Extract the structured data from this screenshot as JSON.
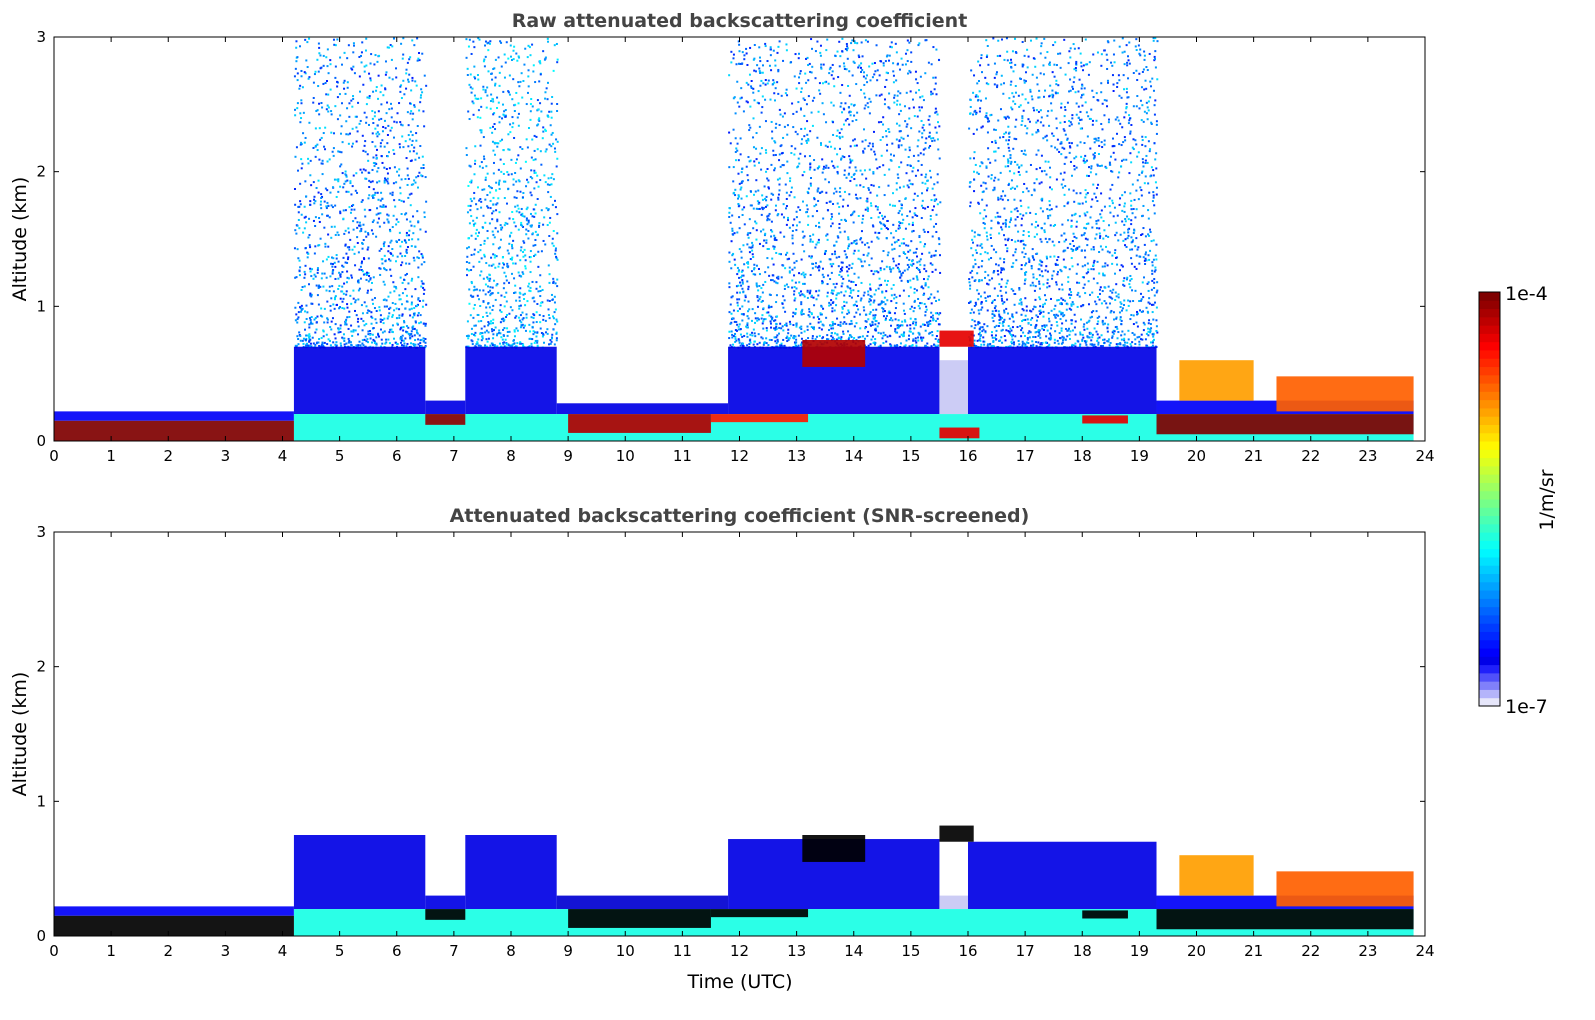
{
  "chart_data": {
    "type": "heatmap",
    "xlabel": "Time (UTC)",
    "x_ticks": [
      "0",
      "1",
      "2",
      "3",
      "4",
      "5",
      "6",
      "7",
      "8",
      "9",
      "10",
      "11",
      "12",
      "13",
      "14",
      "15",
      "16",
      "17",
      "18",
      "19",
      "20",
      "21",
      "22",
      "23",
      "24"
    ],
    "xlim": [
      0,
      24
    ],
    "colorbar": {
      "label": "1/m/sr",
      "min_label": "1e-7",
      "max_label": "1e-4",
      "scale": "log",
      "range": [
        1e-07,
        0.0001
      ]
    },
    "panels": [
      {
        "title": "Raw attenuated backscattering coefficient",
        "ylabel": "Altitude (km)",
        "y_ticks": [
          "0",
          "1",
          "2",
          "3"
        ],
        "ylim": [
          0,
          3
        ],
        "regions": [
          {
            "t": [
              4.2,
              6.5
            ],
            "alt": [
              0.7,
              3
            ],
            "level": 0.25,
            "sparse": true
          },
          {
            "t": [
              7.2,
              8.8
            ],
            "alt": [
              0.7,
              3
            ],
            "level": 0.28,
            "sparse": true
          },
          {
            "t": [
              11.8,
              15.5
            ],
            "alt": [
              0.7,
              3
            ],
            "level": 0.25,
            "sparse": true
          },
          {
            "t": [
              16.0,
              19.3
            ],
            "alt": [
              0.7,
              3
            ],
            "level": 0.25,
            "sparse": true
          },
          {
            "t": [
              0,
              4.2
            ],
            "alt": [
              0.15,
              0.22
            ],
            "level": 0.12
          },
          {
            "t": [
              4.2,
              6.5
            ],
            "alt": [
              0.2,
              0.7
            ],
            "level": 0.1
          },
          {
            "t": [
              6.5,
              7.2
            ],
            "alt": [
              0.2,
              0.3
            ],
            "level": 0.1
          },
          {
            "t": [
              7.2,
              8.8
            ],
            "alt": [
              0.2,
              0.7
            ],
            "level": 0.1
          },
          {
            "t": [
              8.8,
              11.8
            ],
            "alt": [
              0.2,
              0.28
            ],
            "level": 0.1
          },
          {
            "t": [
              11.8,
              15.5
            ],
            "alt": [
              0.2,
              0.7
            ],
            "level": 0.1
          },
          {
            "t": [
              15.5,
              16.0
            ],
            "alt": [
              0.2,
              0.6
            ],
            "level": 0.04
          },
          {
            "t": [
              16.0,
              19.3
            ],
            "alt": [
              0.2,
              0.7
            ],
            "level": 0.1
          },
          {
            "t": [
              19.3,
              23.8
            ],
            "alt": [
              0.2,
              0.3
            ],
            "level": 0.12
          },
          {
            "t": [
              4.2,
              23.8
            ],
            "alt": [
              0.0,
              0.2
            ],
            "level": 0.4
          },
          {
            "t": [
              0,
              4.2
            ],
            "alt": [
              0.0,
              0.15
            ],
            "level": 1.0
          },
          {
            "t": [
              6.5,
              7.2
            ],
            "alt": [
              0.12,
              0.2
            ],
            "level": 0.98
          },
          {
            "t": [
              9.0,
              11.5
            ],
            "alt": [
              0.06,
              0.2
            ],
            "level": 0.95
          },
          {
            "t": [
              11.5,
              13.2
            ],
            "alt": [
              0.14,
              0.2
            ],
            "level": 0.85
          },
          {
            "t": [
              15.5,
              16.2
            ],
            "alt": [
              0.02,
              0.1
            ],
            "level": 0.9
          },
          {
            "t": [
              18.0,
              18.8
            ],
            "alt": [
              0.13,
              0.19
            ],
            "level": 0.9
          },
          {
            "t": [
              19.3,
              23.8
            ],
            "alt": [
              0.05,
              0.2
            ],
            "level": 1.0
          },
          {
            "t": [
              13.1,
              14.2
            ],
            "alt": [
              0.55,
              0.75
            ],
            "level": 0.95
          },
          {
            "t": [
              15.5,
              16.1
            ],
            "alt": [
              0.7,
              0.82
            ],
            "level": 0.9
          },
          {
            "t": [
              19.7,
              21.0
            ],
            "alt": [
              0.3,
              0.6
            ],
            "level": 0.72
          },
          {
            "t": [
              21.4,
              23.8
            ],
            "alt": [
              0.22,
              0.48
            ],
            "level": 0.78
          }
        ]
      },
      {
        "title": "Attenuated backscattering coefficient (SNR-screened)",
        "ylabel": "Altitude (km)",
        "y_ticks": [
          "0",
          "1",
          "2",
          "3"
        ],
        "ylim": [
          0,
          3
        ],
        "regions": [
          {
            "t": [
              0,
              4.2
            ],
            "alt": [
              0.15,
              0.22
            ],
            "level": 0.12
          },
          {
            "t": [
              4.2,
              6.5
            ],
            "alt": [
              0.2,
              0.75
            ],
            "level": 0.1
          },
          {
            "t": [
              6.5,
              7.2
            ],
            "alt": [
              0.2,
              0.3
            ],
            "level": 0.1
          },
          {
            "t": [
              7.2,
              8.8
            ],
            "alt": [
              0.2,
              0.75
            ],
            "level": 0.1
          },
          {
            "t": [
              8.8,
              11.8
            ],
            "alt": [
              0.2,
              0.3
            ],
            "level": 0.08
          },
          {
            "t": [
              11.8,
              15.5
            ],
            "alt": [
              0.2,
              0.72
            ],
            "level": 0.1
          },
          {
            "t": [
              15.5,
              16.0
            ],
            "alt": [
              0.2,
              0.3
            ],
            "level": 0.04
          },
          {
            "t": [
              16.0,
              19.3
            ],
            "alt": [
              0.2,
              0.7
            ],
            "level": 0.1
          },
          {
            "t": [
              19.3,
              23.8
            ],
            "alt": [
              0.2,
              0.3
            ],
            "level": 0.12
          },
          {
            "t": [
              4.2,
              23.8
            ],
            "alt": [
              0.0,
              0.2
            ],
            "level": 0.4
          },
          {
            "t": [
              0,
              4.2
            ],
            "alt": [
              0.0,
              0.15
            ],
            "level": 1.2
          },
          {
            "t": [
              6.5,
              7.2
            ],
            "alt": [
              0.12,
              0.2
            ],
            "level": 1.2
          },
          {
            "t": [
              9.0,
              11.5
            ],
            "alt": [
              0.06,
              0.2
            ],
            "level": 1.2
          },
          {
            "t": [
              11.5,
              13.2
            ],
            "alt": [
              0.14,
              0.2
            ],
            "level": 1.2
          },
          {
            "t": [
              18.0,
              18.8
            ],
            "alt": [
              0.13,
              0.19
            ],
            "level": 1.2
          },
          {
            "t": [
              19.3,
              23.8
            ],
            "alt": [
              0.05,
              0.2
            ],
            "level": 1.2
          },
          {
            "t": [
              13.1,
              14.2
            ],
            "alt": [
              0.55,
              0.75
            ],
            "level": 1.2
          },
          {
            "t": [
              15.5,
              16.1
            ],
            "alt": [
              0.7,
              0.82
            ],
            "level": 1.2
          },
          {
            "t": [
              19.7,
              21.0
            ],
            "alt": [
              0.3,
              0.6
            ],
            "level": 0.72
          },
          {
            "t": [
              21.4,
              23.8
            ],
            "alt": [
              0.22,
              0.48
            ],
            "level": 0.78
          }
        ]
      }
    ]
  }
}
